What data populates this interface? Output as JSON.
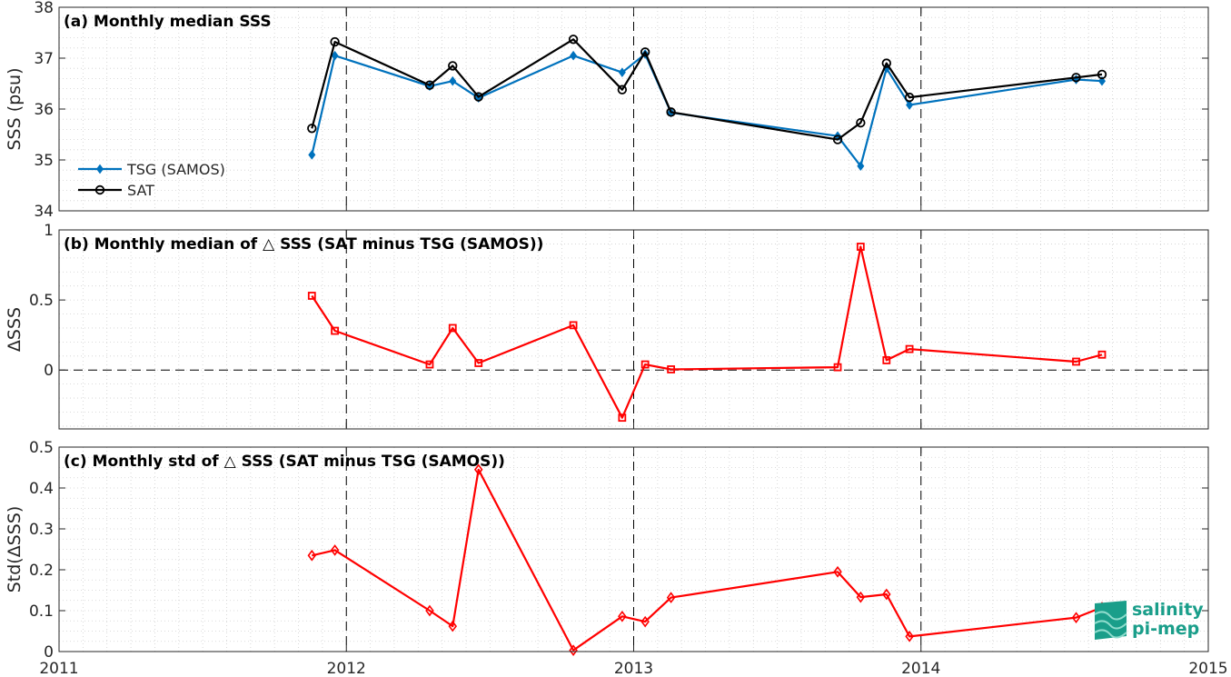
{
  "chart_data": [
    {
      "type": "line",
      "title": "(a) Monthly median SSS",
      "ylabel": "SSS (psu)",
      "xlim": [
        2011,
        2015
      ],
      "ylim": [
        34,
        38
      ],
      "yticks": [
        "34",
        "35",
        "36",
        "37",
        "38"
      ],
      "xticks": [],
      "grid": true,
      "legend_position": "bottom-left",
      "series": [
        {
          "name": "TSG (SAMOS)",
          "color": "#0072BD",
          "marker": "diamond",
          "x": [
            2011.88,
            2011.96,
            2012.29,
            2012.37,
            2012.46,
            2012.79,
            2012.96,
            2013.04,
            2013.13,
            2013.71,
            2013.79,
            2013.88,
            2013.96,
            2014.54,
            2014.63
          ],
          "y": [
            35.1,
            37.05,
            36.45,
            36.55,
            36.22,
            37.05,
            36.72,
            37.08,
            35.93,
            35.47,
            34.88,
            36.8,
            36.08,
            36.58,
            36.55
          ]
        },
        {
          "name": "SAT",
          "color": "#000000",
          "marker": "circle",
          "x": [
            2011.88,
            2011.96,
            2012.29,
            2012.37,
            2012.46,
            2012.79,
            2012.96,
            2013.04,
            2013.13,
            2013.71,
            2013.79,
            2013.88,
            2013.96,
            2014.54,
            2014.63
          ],
          "y": [
            35.62,
            37.32,
            36.47,
            36.85,
            36.24,
            37.37,
            36.38,
            37.12,
            35.94,
            35.4,
            35.73,
            36.9,
            36.23,
            36.62,
            36.68
          ]
        }
      ]
    },
    {
      "type": "line",
      "title": "(b) Monthly median of △ SSS (SAT minus TSG (SAMOS))",
      "ylabel": "ΔSSS",
      "xlim": [
        2011,
        2015
      ],
      "ylim": [
        -0.42,
        1
      ],
      "yticks": [
        "0",
        "0.5",
        "1"
      ],
      "xticks": [],
      "grid": true,
      "series": [
        {
          "name": "",
          "color": "#FF0000",
          "marker": "square",
          "x": [
            2011.88,
            2011.96,
            2012.29,
            2012.37,
            2012.46,
            2012.79,
            2012.96,
            2013.04,
            2013.13,
            2013.71,
            2013.79,
            2013.88,
            2013.96,
            2014.54,
            2014.63
          ],
          "y": [
            0.53,
            0.28,
            0.04,
            0.3,
            0.05,
            0.32,
            -0.34,
            0.04,
            0.005,
            0.02,
            0.88,
            0.07,
            0.15,
            0.06,
            0.11
          ]
        }
      ]
    },
    {
      "type": "line",
      "title": "(c) Monthly std of △ SSS (SAT minus TSG (SAMOS))",
      "ylabel": "Std(ΔSSS)",
      "xlim": [
        2011,
        2015
      ],
      "ylim": [
        0,
        0.5
      ],
      "yticks": [
        "0",
        "0.1",
        "0.2",
        "0.3",
        "0.4",
        "0.5"
      ],
      "xticks": [
        "2011",
        "2012",
        "2013",
        "2014",
        "2015"
      ],
      "grid": true,
      "series": [
        {
          "name": "",
          "color": "#FF0000",
          "marker": "diamond",
          "x": [
            2011.88,
            2011.96,
            2012.29,
            2012.37,
            2012.46,
            2012.79,
            2012.96,
            2013.04,
            2013.13,
            2013.71,
            2013.79,
            2013.88,
            2013.96,
            2014.54,
            2014.63
          ],
          "y": [
            0.235,
            0.248,
            0.1,
            0.062,
            0.445,
            0.003,
            0.086,
            0.073,
            0.132,
            0.195,
            0.133,
            0.14,
            0.037,
            0.083,
            0.108
          ]
        }
      ]
    }
  ],
  "logo": {
    "line1": "salinity",
    "line2": "pi-mep"
  }
}
